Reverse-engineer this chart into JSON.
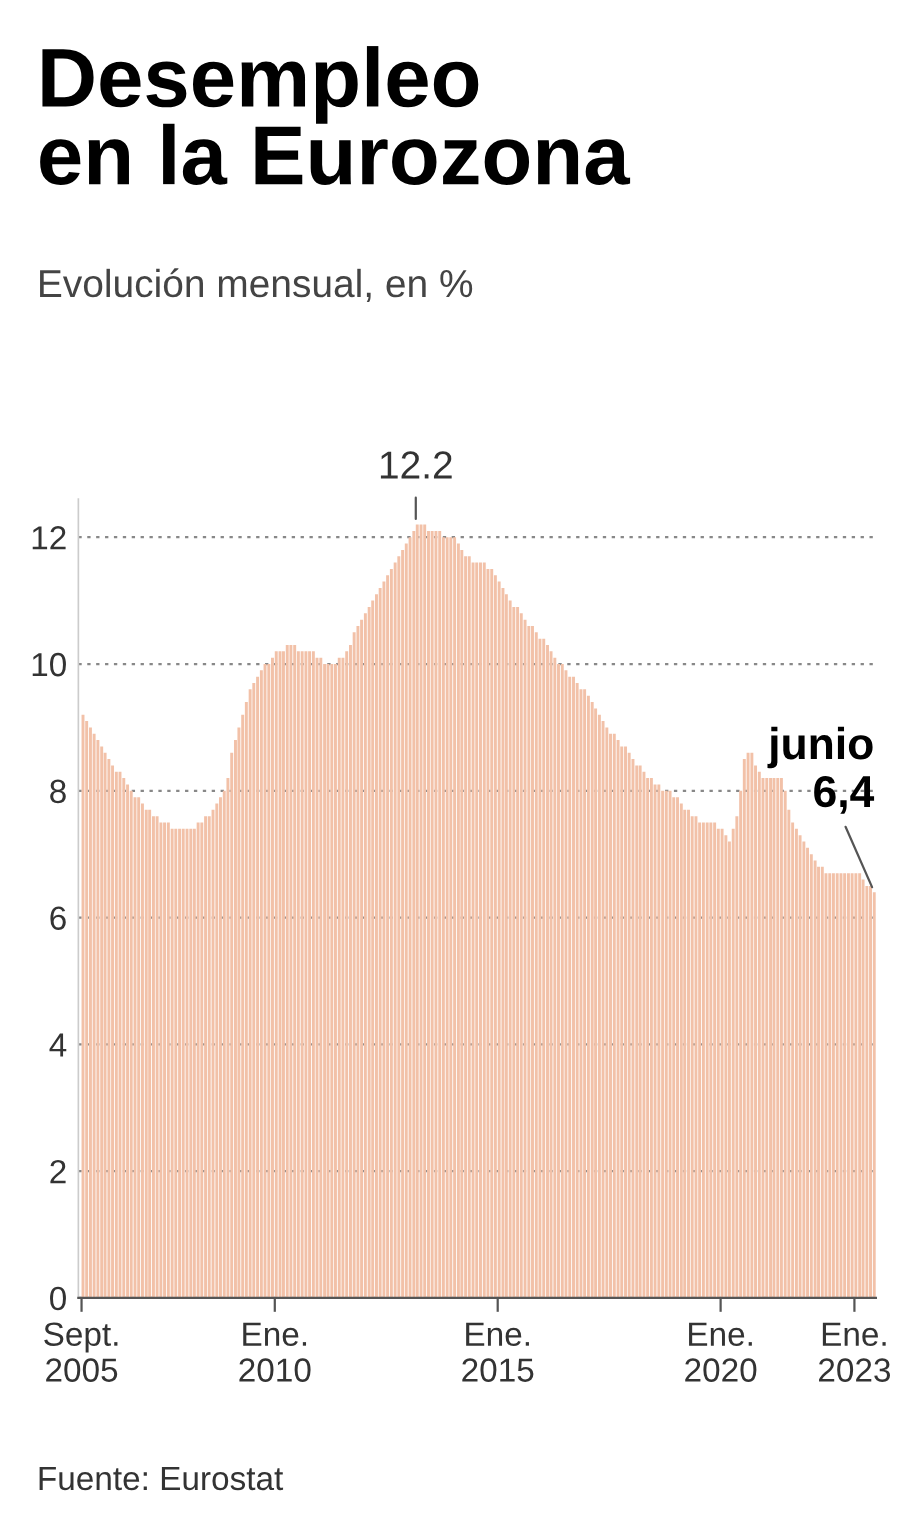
{
  "chart_data": {
    "type": "bar",
    "title": "Desempleo\nen la Eurozona",
    "subtitle": "Evolución mensual, en %",
    "color": "#f2c1a8",
    "x": [
      "2005-09",
      "2005-10",
      "2005-11",
      "2005-12",
      "2006-01",
      "2006-02",
      "2006-03",
      "2006-04",
      "2006-05",
      "2006-06",
      "2006-07",
      "2006-08",
      "2006-09",
      "2006-10",
      "2006-11",
      "2006-12",
      "2007-01",
      "2007-02",
      "2007-03",
      "2007-04",
      "2007-05",
      "2007-06",
      "2007-07",
      "2007-08",
      "2007-09",
      "2007-10",
      "2007-11",
      "2007-12",
      "2008-01",
      "2008-02",
      "2008-03",
      "2008-04",
      "2008-05",
      "2008-06",
      "2008-07",
      "2008-08",
      "2008-09",
      "2008-10",
      "2008-11",
      "2008-12",
      "2009-01",
      "2009-02",
      "2009-03",
      "2009-04",
      "2009-05",
      "2009-06",
      "2009-07",
      "2009-08",
      "2009-09",
      "2009-10",
      "2009-11",
      "2009-12",
      "2010-01",
      "2010-02",
      "2010-03",
      "2010-04",
      "2010-05",
      "2010-06",
      "2010-07",
      "2010-08",
      "2010-09",
      "2010-10",
      "2010-11",
      "2010-12",
      "2011-01",
      "2011-02",
      "2011-03",
      "2011-04",
      "2011-05",
      "2011-06",
      "2011-07",
      "2011-08",
      "2011-09",
      "2011-10",
      "2011-11",
      "2011-12",
      "2012-01",
      "2012-02",
      "2012-03",
      "2012-04",
      "2012-05",
      "2012-06",
      "2012-07",
      "2012-08",
      "2012-09",
      "2012-10",
      "2012-11",
      "2012-12",
      "2013-01",
      "2013-02",
      "2013-03",
      "2013-04",
      "2013-05",
      "2013-06",
      "2013-07",
      "2013-08",
      "2013-09",
      "2013-10",
      "2013-11",
      "2013-12",
      "2014-01",
      "2014-02",
      "2014-03",
      "2014-04",
      "2014-05",
      "2014-06",
      "2014-07",
      "2014-08",
      "2014-09",
      "2014-10",
      "2014-11",
      "2014-12",
      "2015-01",
      "2015-02",
      "2015-03",
      "2015-04",
      "2015-05",
      "2015-06",
      "2015-07",
      "2015-08",
      "2015-09",
      "2015-10",
      "2015-11",
      "2015-12",
      "2016-01",
      "2016-02",
      "2016-03",
      "2016-04",
      "2016-05",
      "2016-06",
      "2016-07",
      "2016-08",
      "2016-09",
      "2016-10",
      "2016-11",
      "2016-12",
      "2017-01",
      "2017-02",
      "2017-03",
      "2017-04",
      "2017-05",
      "2017-06",
      "2017-07",
      "2017-08",
      "2017-09",
      "2017-10",
      "2017-11",
      "2017-12",
      "2018-01",
      "2018-02",
      "2018-03",
      "2018-04",
      "2018-05",
      "2018-06",
      "2018-07",
      "2018-08",
      "2018-09",
      "2018-10",
      "2018-11",
      "2018-12",
      "2019-01",
      "2019-02",
      "2019-03",
      "2019-04",
      "2019-05",
      "2019-06",
      "2019-07",
      "2019-08",
      "2019-09",
      "2019-10",
      "2019-11",
      "2019-12",
      "2020-01",
      "2020-02",
      "2020-03",
      "2020-04",
      "2020-05",
      "2020-06",
      "2020-07",
      "2020-08",
      "2020-09",
      "2020-10",
      "2020-11",
      "2020-12",
      "2021-01",
      "2021-02",
      "2021-03",
      "2021-04",
      "2021-05",
      "2021-06",
      "2021-07",
      "2021-08",
      "2021-09",
      "2021-10",
      "2021-11",
      "2021-12",
      "2022-01",
      "2022-02",
      "2022-03",
      "2022-04",
      "2022-05",
      "2022-06",
      "2022-07",
      "2022-08",
      "2022-09",
      "2022-10",
      "2022-11",
      "2022-12",
      "2023-01",
      "2023-02",
      "2023-03",
      "2023-04",
      "2023-05",
      "2023-06"
    ],
    "values": [
      9.2,
      9.1,
      9.0,
      8.9,
      8.8,
      8.7,
      8.6,
      8.5,
      8.4,
      8.3,
      8.3,
      8.2,
      8.1,
      8.0,
      7.9,
      7.9,
      7.8,
      7.7,
      7.7,
      7.6,
      7.6,
      7.5,
      7.5,
      7.5,
      7.4,
      7.4,
      7.4,
      7.4,
      7.4,
      7.4,
      7.4,
      7.5,
      7.5,
      7.6,
      7.6,
      7.7,
      7.8,
      7.9,
      8.0,
      8.2,
      8.6,
      8.8,
      9.0,
      9.2,
      9.4,
      9.6,
      9.7,
      9.8,
      9.9,
      10.0,
      10.0,
      10.1,
      10.2,
      10.2,
      10.2,
      10.3,
      10.3,
      10.3,
      10.2,
      10.2,
      10.2,
      10.2,
      10.2,
      10.1,
      10.1,
      10.0,
      10.0,
      10.0,
      10.0,
      10.1,
      10.1,
      10.2,
      10.3,
      10.5,
      10.6,
      10.7,
      10.8,
      10.9,
      11.0,
      11.1,
      11.2,
      11.3,
      11.4,
      11.5,
      11.6,
      11.7,
      11.8,
      11.9,
      12.0,
      12.1,
      12.2,
      12.2,
      12.2,
      12.1,
      12.1,
      12.1,
      12.1,
      12.0,
      12.0,
      12.0,
      12.0,
      11.9,
      11.8,
      11.7,
      11.7,
      11.6,
      11.6,
      11.6,
      11.6,
      11.5,
      11.5,
      11.4,
      11.3,
      11.2,
      11.1,
      11.0,
      10.9,
      10.9,
      10.8,
      10.7,
      10.6,
      10.6,
      10.5,
      10.4,
      10.4,
      10.3,
      10.2,
      10.1,
      10.0,
      10.0,
      9.9,
      9.8,
      9.8,
      9.7,
      9.6,
      9.6,
      9.5,
      9.4,
      9.3,
      9.2,
      9.1,
      9.0,
      8.9,
      8.9,
      8.8,
      8.7,
      8.7,
      8.6,
      8.5,
      8.4,
      8.4,
      8.3,
      8.2,
      8.2,
      8.1,
      8.1,
      8.0,
      8.0,
      8.0,
      7.9,
      7.9,
      7.8,
      7.7,
      7.7,
      7.6,
      7.6,
      7.5,
      7.5,
      7.5,
      7.5,
      7.5,
      7.4,
      7.4,
      7.3,
      7.2,
      7.4,
      7.6,
      8.0,
      8.5,
      8.6,
      8.6,
      8.4,
      8.3,
      8.2,
      8.2,
      8.2,
      8.2,
      8.2,
      8.2,
      8.0,
      7.7,
      7.5,
      7.4,
      7.3,
      7.2,
      7.1,
      7.0,
      6.9,
      6.8,
      6.8,
      6.7,
      6.7,
      6.7,
      6.7,
      6.7,
      6.7,
      6.7,
      6.7,
      6.7,
      6.7,
      6.6,
      6.5,
      6.5,
      6.4
    ],
    "xlim": [
      "2005-08-20",
      "2023-07-10"
    ],
    "xticks": [
      {
        "value": "2005-09",
        "label": "Sept.\n2005"
      },
      {
        "value": "2010-01",
        "label": "Ene.\n2010"
      },
      {
        "value": "2015-01",
        "label": "Ene.\n2015"
      },
      {
        "value": "2020-01",
        "label": "Ene.\n2020"
      },
      {
        "value": "2023-01",
        "label": "Ene.\n2023"
      }
    ],
    "ylim": [
      0,
      12.6
    ],
    "yticks": [
      0,
      2,
      4,
      6,
      8,
      10,
      12
    ],
    "grid": "y",
    "annotations": [
      {
        "text": "12.2",
        "x": "2013-03",
        "y": 12.2
      },
      {
        "text": "junio\n6,4",
        "x": "2023-06",
        "y": 6.4
      },
      "Fuente: Eurostat"
    ]
  }
}
